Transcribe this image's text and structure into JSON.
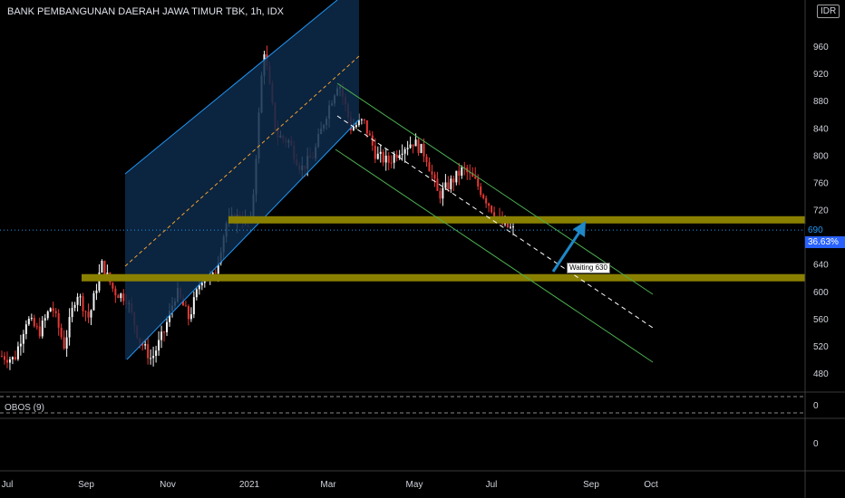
{
  "header": {
    "title": "BANK PEMBANGUNAN DAERAH JAWA TIMUR TBK, 1h, IDX",
    "currency": "IDR"
  },
  "indicator": {
    "label": "OBOS (9)",
    "scale": [
      "0",
      "0"
    ]
  },
  "badges": {
    "last_price": "690",
    "change_pct": "36.63%"
  },
  "annotation": {
    "text": "Waiting 630"
  },
  "colors": {
    "background": "#000000",
    "up": "#f5f5f5",
    "down": "#e53935",
    "channel_fill": "#0d2a4a",
    "channel_line": "#2196f3",
    "down_channel": "#4caf50",
    "zone": "#8a8000",
    "arrow": "#1e88c8"
  },
  "chart_data": {
    "type": "candlestick",
    "title": "BANK PEMBANGUNAN DAERAH JAWA TIMUR TBK, 1h, IDX",
    "x_ticks": [
      "Jul",
      "Sep",
      "Nov",
      "2021",
      "Mar",
      "May",
      "Jul",
      "Sep",
      "Oct"
    ],
    "y_ticks": [
      480,
      520,
      560,
      600,
      640,
      680,
      720,
      760,
      800,
      840,
      880,
      920,
      960
    ],
    "y_range": [
      450,
      1000
    ],
    "last_price": 690,
    "change_pct": "36.63%",
    "price_path": [
      505,
      500,
      560,
      540,
      580,
      520,
      600,
      560,
      640,
      600,
      590,
      530,
      500,
      540,
      600,
      560,
      620,
      620,
      700,
      710,
      700,
      960,
      830,
      820,
      780,
      800,
      860,
      910,
      840,
      850,
      800,
      790,
      810,
      820,
      800,
      740,
      760,
      780,
      760,
      730,
      700,
      690
    ],
    "support_zones": [
      620,
      705
    ],
    "target": 630,
    "grid": false
  }
}
